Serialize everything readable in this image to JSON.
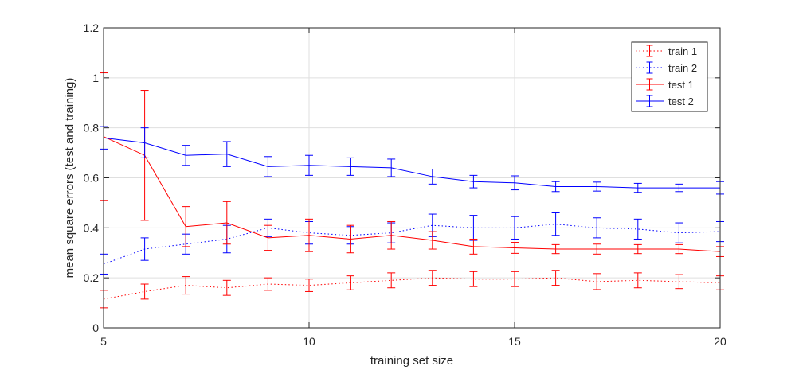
{
  "chart_data": {
    "type": "line",
    "title": "",
    "xlabel": "training set size",
    "ylabel": "mean square errors (test and training)",
    "xlim": [
      5,
      20
    ],
    "ylim": [
      0,
      1.2
    ],
    "xticks": [
      "5",
      "10",
      "15",
      "20"
    ],
    "yticks": [
      "0",
      "0.2",
      "0.4",
      "0.6",
      "0.8",
      "1",
      "1.2"
    ],
    "grid": true,
    "legend_position": "top-right",
    "x": [
      5,
      6,
      7,
      8,
      9,
      10,
      11,
      12,
      13,
      14,
      15,
      16,
      17,
      18,
      19,
      20
    ],
    "series": [
      {
        "name": "train 1",
        "color": "#ff0000",
        "style": "dotted",
        "values": [
          0.115,
          0.145,
          0.17,
          0.16,
          0.175,
          0.17,
          0.18,
          0.19,
          0.2,
          0.195,
          0.195,
          0.2,
          0.185,
          0.19,
          0.185,
          0.18
        ],
        "errors": [
          0.035,
          0.03,
          0.035,
          0.03,
          0.025,
          0.025,
          0.028,
          0.03,
          0.03,
          0.03,
          0.03,
          0.03,
          0.032,
          0.03,
          0.028,
          0.028
        ]
      },
      {
        "name": "train 2",
        "color": "#0000ff",
        "style": "dotted",
        "values": [
          0.255,
          0.315,
          0.335,
          0.355,
          0.4,
          0.38,
          0.37,
          0.38,
          0.41,
          0.4,
          0.4,
          0.415,
          0.4,
          0.395,
          0.38,
          0.385
        ],
        "errors": [
          0.04,
          0.045,
          0.04,
          0.055,
          0.035,
          0.045,
          0.035,
          0.04,
          0.045,
          0.05,
          0.045,
          0.045,
          0.04,
          0.04,
          0.04,
          0.04
        ]
      },
      {
        "name": "test 1",
        "color": "#ff0000",
        "style": "solid",
        "values": [
          0.765,
          0.69,
          0.405,
          0.42,
          0.36,
          0.37,
          0.355,
          0.37,
          0.35,
          0.325,
          0.32,
          0.315,
          0.315,
          0.315,
          0.315,
          0.305
        ],
        "errors": [
          0.255,
          0.26,
          0.08,
          0.085,
          0.05,
          0.065,
          0.055,
          0.055,
          0.035,
          0.03,
          0.022,
          0.018,
          0.02,
          0.018,
          0.018,
          0.02
        ]
      },
      {
        "name": "test 2",
        "color": "#0000ff",
        "style": "solid",
        "values": [
          0.76,
          0.74,
          0.69,
          0.695,
          0.645,
          0.65,
          0.645,
          0.64,
          0.605,
          0.585,
          0.58,
          0.565,
          0.565,
          0.56,
          0.56,
          0.56
        ],
        "errors": [
          0.045,
          0.06,
          0.04,
          0.05,
          0.04,
          0.04,
          0.035,
          0.035,
          0.03,
          0.025,
          0.028,
          0.02,
          0.018,
          0.018,
          0.015,
          0.025
        ]
      }
    ]
  }
}
